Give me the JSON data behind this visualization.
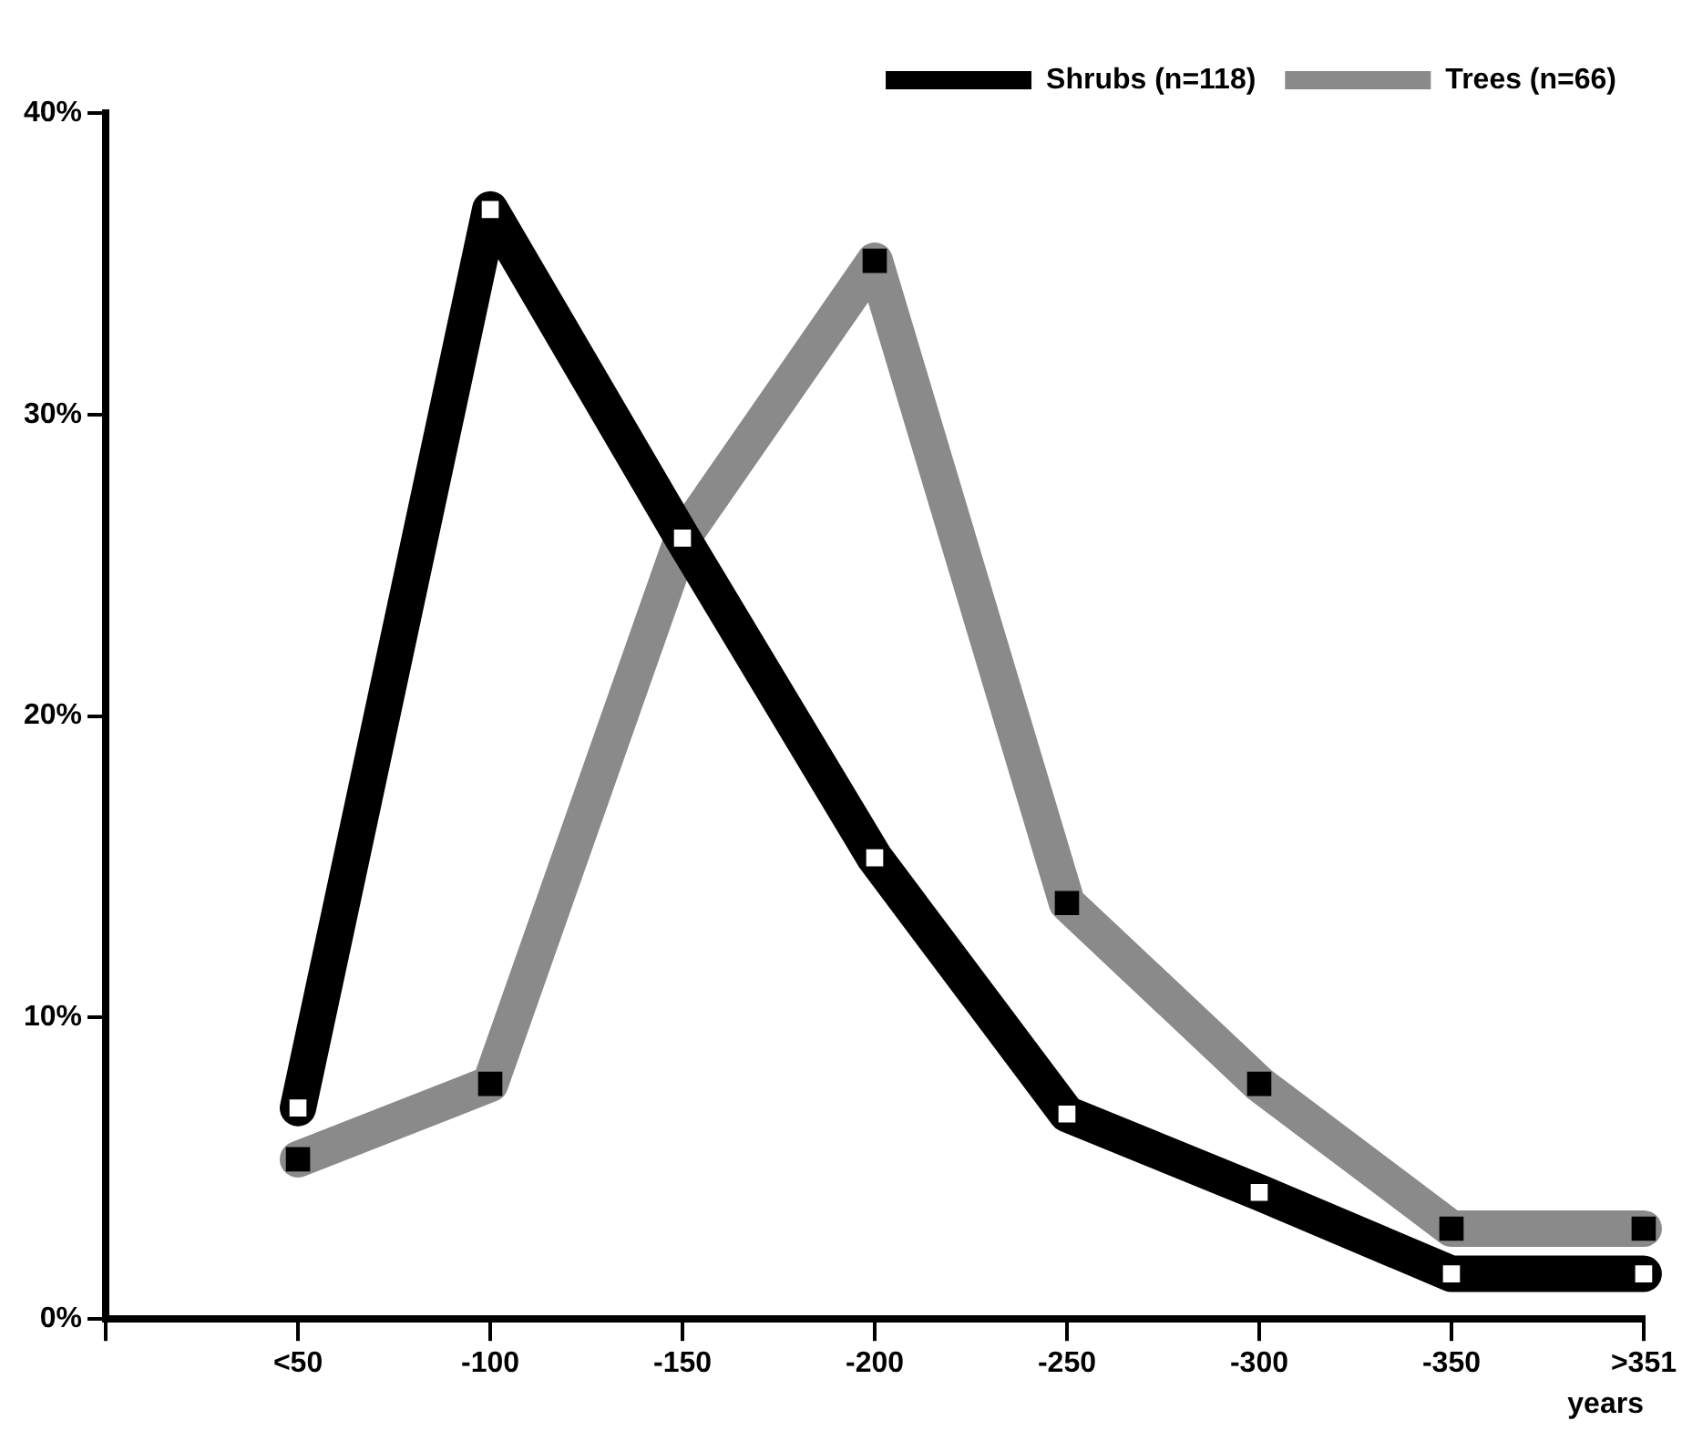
{
  "chart_data": {
    "type": "line",
    "xlabel": "years",
    "categories": [
      null,
      "<50",
      "-100",
      "-150",
      "-200",
      "-250",
      "-300",
      "-350",
      ">351"
    ],
    "series": [
      {
        "name": "Shrubs (n=118)",
        "color": "#000000",
        "values": [
          null,
          7.0,
          36.8,
          25.9,
          15.3,
          6.8,
          4.2,
          1.5,
          1.5
        ]
      },
      {
        "name": "Trees (n=66)",
        "color": "#8a8a8a",
        "values": [
          null,
          5.3,
          7.8,
          25.9,
          35.1,
          13.8,
          7.8,
          3.0,
          3.0
        ]
      }
    ],
    "ylim": [
      0,
      40
    ],
    "yticks": [
      {
        "value": 0,
        "label": "0%"
      },
      {
        "value": 10,
        "label": "10%"
      },
      {
        "value": 20,
        "label": "20%"
      },
      {
        "value": 30,
        "label": "30%"
      },
      {
        "value": 40,
        "label": "40%"
      }
    ],
    "grid": false,
    "legend": "top right",
    "marker": "square",
    "line_style": "solid"
  }
}
